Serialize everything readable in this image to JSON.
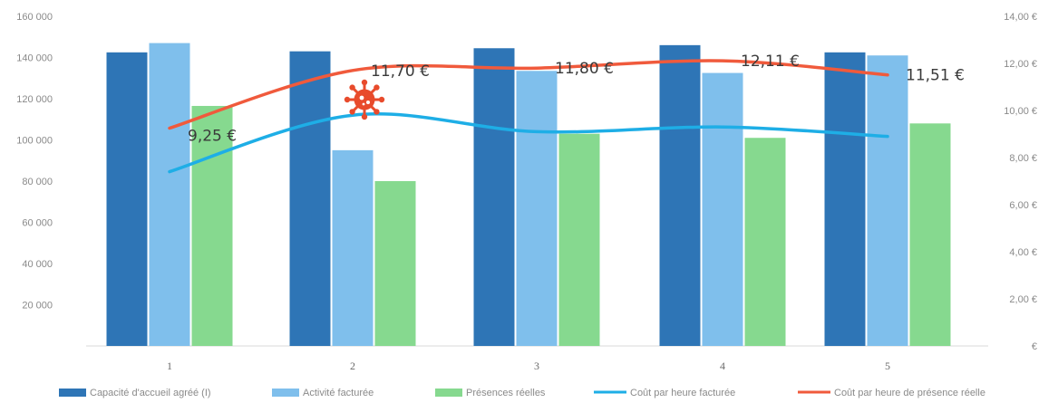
{
  "chart_data": {
    "type": "bar",
    "categories": [
      "1",
      "2",
      "3",
      "4",
      "5"
    ],
    "y_left": {
      "min": 0,
      "max": 160000,
      "ticks": [
        "",
        "20 000",
        "40 000",
        "60 000",
        "80 000",
        "100 000",
        "120 000",
        "140 000",
        "160 000"
      ]
    },
    "y_right": {
      "min": 0,
      "max": 14,
      "ticks": [
        "€",
        "2,00 €",
        "4,00 €",
        "6,00 €",
        "8,00 €",
        "10,00 €",
        "12,00 €",
        "14,00 €"
      ]
    },
    "bar_series": [
      {
        "name": "Capacité d'accueil agréé (I)",
        "color": "#2e75b6",
        "values": [
          142500,
          143000,
          144500,
          146000,
          142500
        ]
      },
      {
        "name": "Activité facturée",
        "color": "#7fbfec",
        "values": [
          147000,
          95000,
          133500,
          132500,
          141000
        ]
      },
      {
        "name": "Présences réelles",
        "color": "#86d98f",
        "values": [
          116500,
          80000,
          103000,
          101000,
          108000
        ]
      }
    ],
    "line_series": [
      {
        "name": "Coût par heure facturée",
        "color": "#1eaee6",
        "values": [
          7.4,
          9.8,
          9.1,
          9.3,
          8.9
        ]
      },
      {
        "name": "Coût par heure de présence réelle",
        "color": "#f05a3c",
        "values": [
          9.25,
          11.7,
          11.8,
          12.11,
          11.51
        ]
      }
    ],
    "data_labels": [
      "9,25 €",
      "11,70 €",
      "11,80 €",
      "12,11 €",
      "11,51 €"
    ],
    "grid": false,
    "legend_position": "bottom",
    "annotation_icon": "virus-icon"
  }
}
